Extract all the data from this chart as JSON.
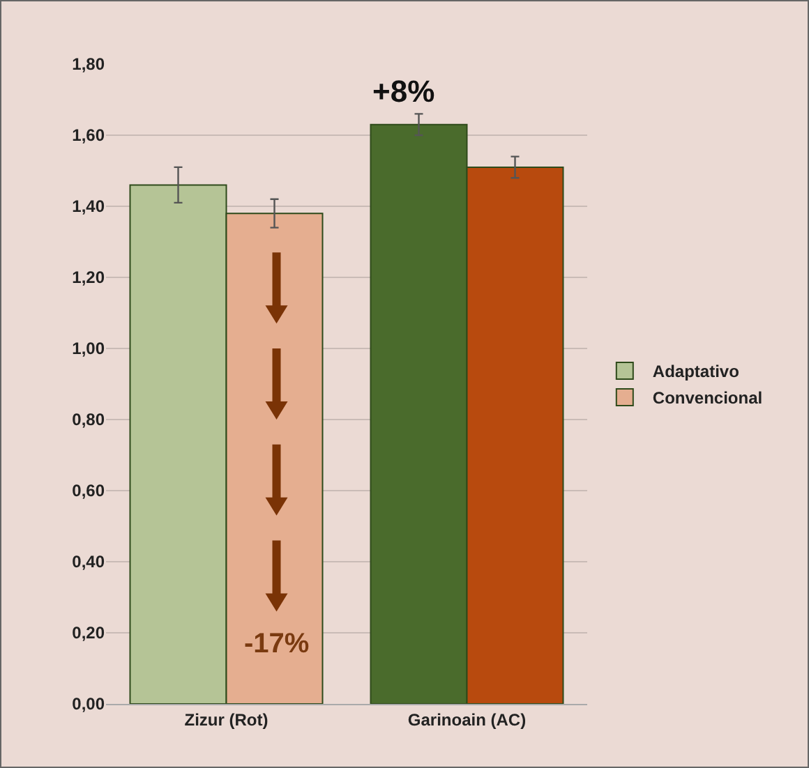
{
  "chart_data": {
    "type": "bar",
    "categories": [
      "Zizur (Rot)",
      "Garinoain (AC)"
    ],
    "series": [
      {
        "name": "Adaptativo",
        "colors": [
          "#b5c496",
          "#4a6b2c"
        ],
        "values": [
          1.46,
          1.63
        ],
        "errors": [
          0.05,
          0.03
        ]
      },
      {
        "name": "Convencional",
        "colors": [
          "#e5ae90",
          "#b84a0e"
        ],
        "values": [
          1.38,
          1.51
        ],
        "errors": [
          0.04,
          0.03
        ]
      }
    ],
    "ylim": [
      0,
      1.8
    ],
    "yticks": [
      {
        "value": 0,
        "label": "0,00"
      },
      {
        "value": 0.2,
        "label": "0,20"
      },
      {
        "value": 0.4,
        "label": "0,40"
      },
      {
        "value": 0.6,
        "label": "0,60"
      },
      {
        "value": 0.8,
        "label": "0,80"
      },
      {
        "value": 1,
        "label": "1,00"
      },
      {
        "value": 1.2,
        "label": "1,20"
      },
      {
        "value": 1.4,
        "label": "1,40"
      },
      {
        "value": 1.6,
        "label": "1,60"
      },
      {
        "value": 1.8,
        "label": "1,80"
      }
    ],
    "grid": "y",
    "legend": "right",
    "annotations": [
      "+8%",
      "-17%"
    ]
  }
}
